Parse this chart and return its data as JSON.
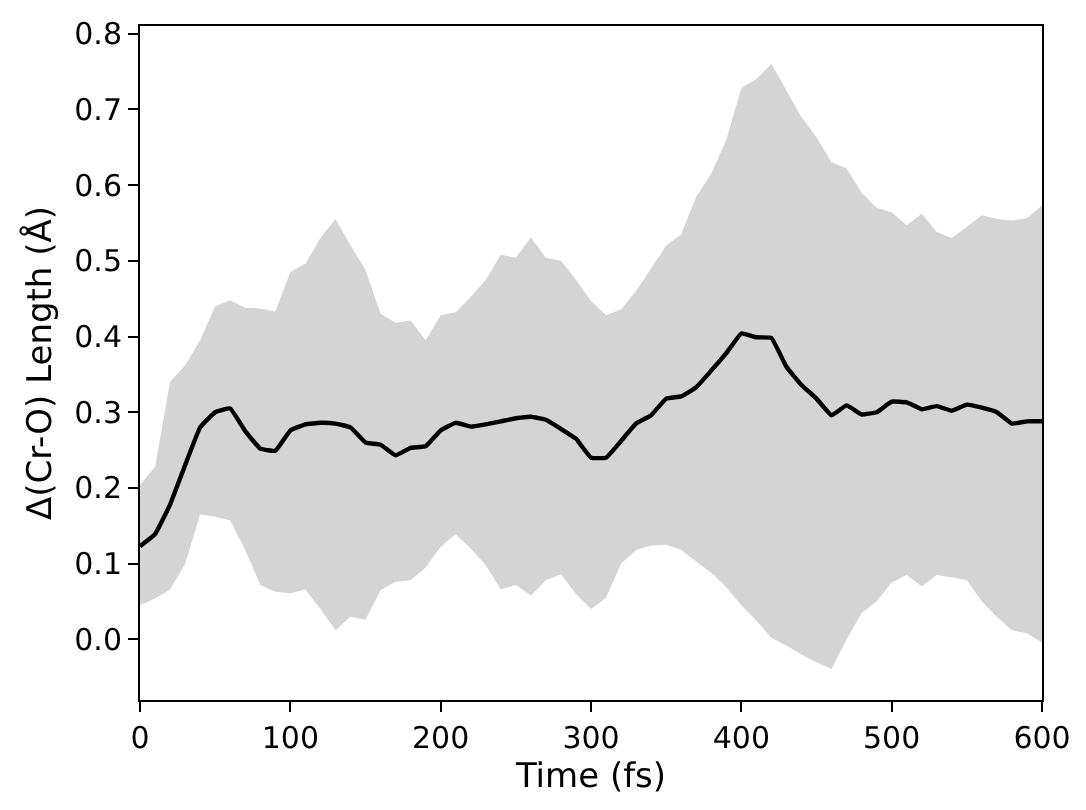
{
  "chart_data": {
    "type": "line",
    "xlabel": "Time (fs)",
    "ylabel": "Δ(Cr-O) Length (Å)",
    "x": [
      0,
      10,
      20,
      30,
      40,
      50,
      60,
      70,
      80,
      90,
      100,
      110,
      120,
      130,
      140,
      150,
      160,
      170,
      180,
      190,
      200,
      210,
      220,
      230,
      240,
      250,
      260,
      270,
      280,
      290,
      300,
      310,
      320,
      330,
      340,
      350,
      360,
      370,
      380,
      390,
      400,
      410,
      420,
      430,
      440,
      450,
      460,
      470,
      480,
      490,
      500,
      510,
      520,
      530,
      540,
      550,
      560,
      570,
      580,
      590,
      600
    ],
    "series": [
      {
        "color": "#000000",
        "values": [
          0.123,
          0.139,
          0.178,
          0.23,
          0.28,
          0.3,
          0.305,
          0.275,
          0.252,
          0.249,
          0.276,
          0.284,
          0.286,
          0.285,
          0.28,
          0.26,
          0.257,
          0.243,
          0.253,
          0.255,
          0.276,
          0.286,
          0.281,
          0.284,
          0.288,
          0.292,
          0.294,
          0.29,
          0.278,
          0.265,
          0.24,
          0.24,
          0.262,
          0.285,
          0.296,
          0.318,
          0.321,
          0.333,
          0.355,
          0.378,
          0.404,
          0.399,
          0.398,
          0.36,
          0.336,
          0.318,
          0.296,
          0.309,
          0.297,
          0.3,
          0.314,
          0.313,
          0.304,
          0.308,
          0.302,
          0.31,
          0.306,
          0.3,
          0.285,
          0.288,
          0.288
        ],
        "upper": [
          0.204,
          0.228,
          0.34,
          0.362,
          0.395,
          0.44,
          0.448,
          0.438,
          0.437,
          0.433,
          0.485,
          0.496,
          0.53,
          0.555,
          0.52,
          0.488,
          0.43,
          0.418,
          0.421,
          0.395,
          0.428,
          0.432,
          0.452,
          0.475,
          0.508,
          0.504,
          0.531,
          0.504,
          0.5,
          0.475,
          0.447,
          0.428,
          0.436,
          0.46,
          0.49,
          0.52,
          0.535,
          0.585,
          0.615,
          0.66,
          0.728,
          0.74,
          0.76,
          0.725,
          0.69,
          0.663,
          0.63,
          0.622,
          0.59,
          0.57,
          0.564,
          0.547,
          0.562,
          0.538,
          0.53,
          0.545,
          0.56,
          0.555,
          0.553,
          0.556,
          0.573
        ],
        "lower": [
          0.045,
          0.054,
          0.066,
          0.1,
          0.165,
          0.162,
          0.157,
          0.118,
          0.072,
          0.063,
          0.061,
          0.066,
          0.04,
          0.012,
          0.03,
          0.026,
          0.065,
          0.076,
          0.078,
          0.095,
          0.122,
          0.139,
          0.12,
          0.098,
          0.066,
          0.072,
          0.058,
          0.078,
          0.086,
          0.06,
          0.04,
          0.055,
          0.1,
          0.118,
          0.124,
          0.125,
          0.118,
          0.103,
          0.088,
          0.069,
          0.045,
          0.025,
          0.002,
          -0.008,
          -0.02,
          -0.03,
          -0.039,
          0.0,
          0.035,
          0.05,
          0.075,
          0.085,
          0.07,
          0.085,
          0.082,
          0.078,
          0.05,
          0.03,
          0.012,
          0.008,
          -0.004
        ]
      }
    ],
    "xlim": [
      0,
      600
    ],
    "xticks": [
      0,
      100,
      200,
      300,
      400,
      500,
      600
    ],
    "ylim": [
      -0.08,
      0.81
    ],
    "yticks": [
      {
        "value": 0,
        "label": "0.0"
      },
      0.1,
      0.2,
      0.3,
      0.4,
      0.5,
      0.6,
      0.7,
      0.8
    ],
    "marker": "none",
    "line_style": "solid"
  }
}
